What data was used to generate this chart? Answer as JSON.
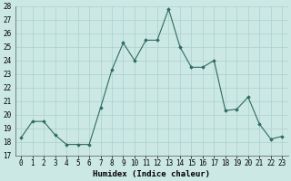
{
  "x": [
    0,
    1,
    2,
    3,
    4,
    5,
    6,
    7,
    8,
    9,
    10,
    11,
    12,
    13,
    14,
    15,
    16,
    17,
    18,
    19,
    20,
    21,
    22,
    23
  ],
  "y": [
    18.3,
    19.5,
    19.5,
    18.5,
    17.8,
    17.8,
    17.8,
    20.5,
    23.3,
    25.3,
    24.0,
    25.5,
    25.5,
    27.8,
    25.0,
    23.5,
    23.5,
    24.0,
    20.3,
    20.4,
    21.3,
    19.3,
    18.2,
    18.4
  ],
  "xlabel": "Humidex (Indice chaleur)",
  "ylim": [
    17,
    28
  ],
  "xlim": [
    -0.5,
    23.5
  ],
  "yticks": [
    17,
    18,
    19,
    20,
    21,
    22,
    23,
    24,
    25,
    26,
    27,
    28
  ],
  "xticks": [
    0,
    1,
    2,
    3,
    4,
    5,
    6,
    7,
    8,
    9,
    10,
    11,
    12,
    13,
    14,
    15,
    16,
    17,
    18,
    19,
    20,
    21,
    22,
    23
  ],
  "line_color": "#2e6b5e",
  "marker": "D",
  "marker_size": 1.8,
  "line_width": 0.8,
  "bg_color": "#cce8e4",
  "grid_color": "#aad0cb",
  "axis_fontsize": 6.5,
  "tick_fontsize": 5.5
}
